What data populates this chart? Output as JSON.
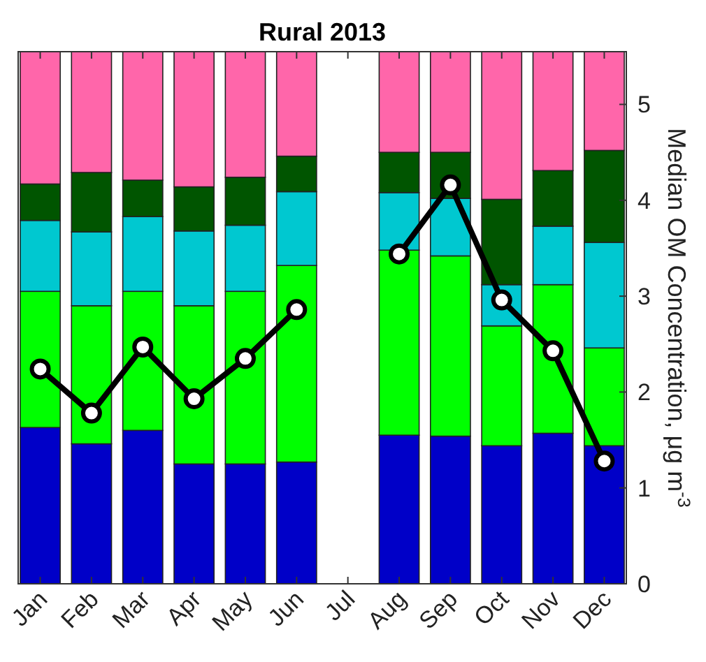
{
  "chart_data": {
    "type": "bar",
    "title": "Rural 2013",
    "ylabel": "Median OM Concentration, μg m$^{-3}$",
    "categories": [
      "Jan",
      "Feb",
      "Mar",
      "Apr",
      "May",
      "Jun",
      "Jul",
      "Aug",
      "Sep",
      "Oct",
      "Nov",
      "Dec"
    ],
    "stacked": true,
    "ylim": [
      0,
      5.55
    ],
    "yticks": [
      0,
      1,
      2,
      3,
      4,
      5
    ],
    "grid": false,
    "marker": "circle",
    "line_style": "solid",
    "series": [
      {
        "color": "#0000c8",
        "values": [
          1.63,
          1.46,
          1.6,
          1.25,
          1.25,
          1.27,
          null,
          1.55,
          1.54,
          1.44,
          1.57,
          1.44
        ]
      },
      {
        "color": "#00ff00",
        "values": [
          1.42,
          1.44,
          1.45,
          1.65,
          1.8,
          2.05,
          null,
          1.93,
          1.88,
          1.25,
          1.55,
          1.02
        ]
      },
      {
        "color": "#00c8d0",
        "values": [
          0.74,
          0.77,
          0.78,
          0.78,
          0.69,
          0.77,
          null,
          0.6,
          0.6,
          0.43,
          0.61,
          1.1
        ]
      },
      {
        "color": "#005500",
        "values": [
          0.38,
          0.62,
          0.38,
          0.46,
          0.5,
          0.37,
          null,
          0.42,
          0.48,
          0.89,
          0.58,
          0.96
        ]
      },
      {
        "color": "#ff66aa",
        "values": [
          1.38,
          1.26,
          1.34,
          1.41,
          1.31,
          1.09,
          null,
          1.05,
          1.05,
          1.54,
          1.24,
          1.03
        ]
      },
      {
        "type": "line",
        "color": "#000000",
        "values": [
          2.24,
          1.78,
          2.47,
          1.93,
          2.35,
          2.86,
          null,
          3.44,
          4.16,
          2.96,
          2.43,
          1.28
        ]
      }
    ]
  }
}
